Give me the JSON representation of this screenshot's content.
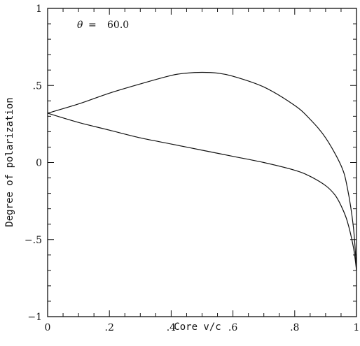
{
  "chart_data": {
    "type": "line",
    "title": "",
    "xlabel": "Core v/c",
    "ylabel": "Degree of polarization",
    "xlim": [
      0,
      1
    ],
    "ylim": [
      -1,
      1
    ],
    "x_ticks": [
      0,
      0.2,
      0.4,
      0.6,
      0.8,
      1
    ],
    "x_tick_labels": [
      "0",
      ".2",
      ".4",
      ".6",
      ".8",
      "1"
    ],
    "y_ticks": [
      -1,
      -0.5,
      0,
      0.5,
      1
    ],
    "y_tick_labels": [
      "−1",
      "−.5",
      "0",
      ".5",
      "1"
    ],
    "grid": false,
    "annotation": {
      "symbol": "θ",
      "equals": "=",
      "value": "60.0"
    },
    "series": [
      {
        "x": [
          0,
          0.1,
          0.2,
          0.3,
          0.4,
          0.45,
          0.5,
          0.55,
          0.6,
          0.7,
          0.8,
          0.85,
          0.9,
          0.95,
          0.97,
          0.99,
          1.0
        ],
        "y": [
          0.32,
          0.38,
          0.45,
          0.51,
          0.565,
          0.58,
          0.585,
          0.58,
          0.56,
          0.49,
          0.37,
          0.28,
          0.16,
          -0.02,
          -0.16,
          -0.42,
          -0.7
        ]
      },
      {
        "x": [
          0,
          0.1,
          0.2,
          0.3,
          0.4,
          0.5,
          0.6,
          0.7,
          0.8,
          0.85,
          0.9,
          0.93,
          0.95,
          0.97,
          0.99,
          1.0
        ],
        "y": [
          0.32,
          0.26,
          0.21,
          0.16,
          0.12,
          0.08,
          0.04,
          0.0,
          -0.05,
          -0.09,
          -0.15,
          -0.21,
          -0.28,
          -0.38,
          -0.55,
          -0.7
        ]
      }
    ]
  }
}
